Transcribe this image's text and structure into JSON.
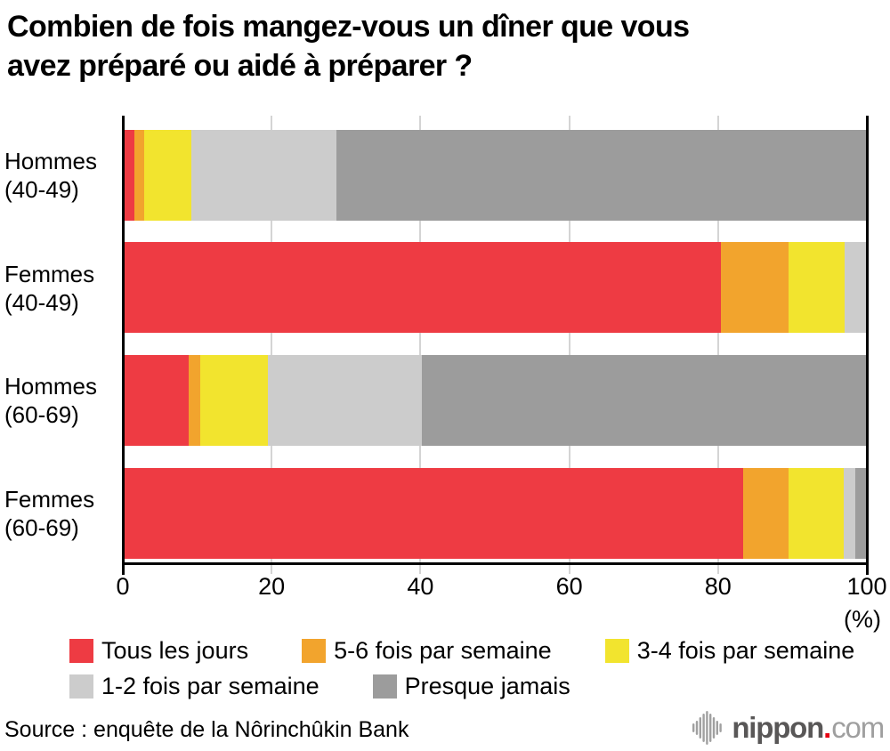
{
  "title": {
    "full": "Combien de fois mangez-vous un dîner que vous avez préparé ou aidé à préparer ?",
    "lines": [
      "Combien de fois mangez-vous un dîner que vous",
      "avez préparé ou aidé à préparer ?"
    ]
  },
  "axis": {
    "ticks": [
      0,
      20,
      40,
      60,
      80,
      100
    ],
    "unit_label": "(%)"
  },
  "chart_data": {
    "type": "bar",
    "orientation": "horizontal",
    "stacked": true,
    "title": "Combien de fois mangez-vous un dîner que vous avez préparé ou aidé à préparer ?",
    "categories": [
      {
        "line1": "Hommes",
        "line2": "(40-49)"
      },
      {
        "line1": "Femmes",
        "line2": "(40-49)"
      },
      {
        "line1": "Hommes",
        "line2": "(60-69)"
      },
      {
        "line1": "Femmes",
        "line2": "(60-69)"
      }
    ],
    "series": [
      {
        "name": "Tous les jours",
        "color": "#ee3b43",
        "values": [
          1.5,
          80.4,
          8.9,
          83.4
        ]
      },
      {
        "name": "5-6 fois par semaine",
        "color": "#f2a42d",
        "values": [
          1.4,
          9.1,
          1.5,
          6.1
        ]
      },
      {
        "name": "3-4 fois par semaine",
        "color": "#f2e42e",
        "values": [
          6.3,
          7.5,
          9.1,
          7.4
        ]
      },
      {
        "name": "1-2 fois par semaine",
        "color": "#cccccc",
        "values": [
          19.5,
          3.0,
          20.7,
          1.6
        ]
      },
      {
        "name": "Presque jamais",
        "color": "#9c9c9c",
        "values": [
          71.3,
          0.0,
          59.8,
          1.5
        ]
      }
    ],
    "xlim": [
      0,
      100
    ],
    "xlabel": "(%)",
    "ylabel": "",
    "grid": true,
    "legend_position": "bottom"
  },
  "legend": {
    "rows": [
      [
        {
          "label": "Tous les jours",
          "color": "#ee3b43"
        },
        {
          "label": "5-6 fois par semaine",
          "color": "#f2a42d"
        },
        {
          "label": "3-4 fois par semaine",
          "color": "#f2e42e"
        }
      ],
      [
        {
          "label": "1-2 fois par semaine",
          "color": "#cccccc"
        },
        {
          "label": "Presque jamais",
          "color": "#9c9c9c"
        }
      ]
    ]
  },
  "footer": {
    "source": "Source : enquête de la Nôrinchûkin Bank"
  },
  "logo": {
    "icon": "soundwave-bars-icon",
    "brand": "nippon",
    "dot": ".",
    "suffix": "com",
    "brand_color": "#595757",
    "dot_color": "#e60012",
    "suffix_color": "#9f9f9f"
  },
  "colors": {
    "gridline": "#d4d4d4",
    "axis": "#000000",
    "background": "#ffffff"
  }
}
